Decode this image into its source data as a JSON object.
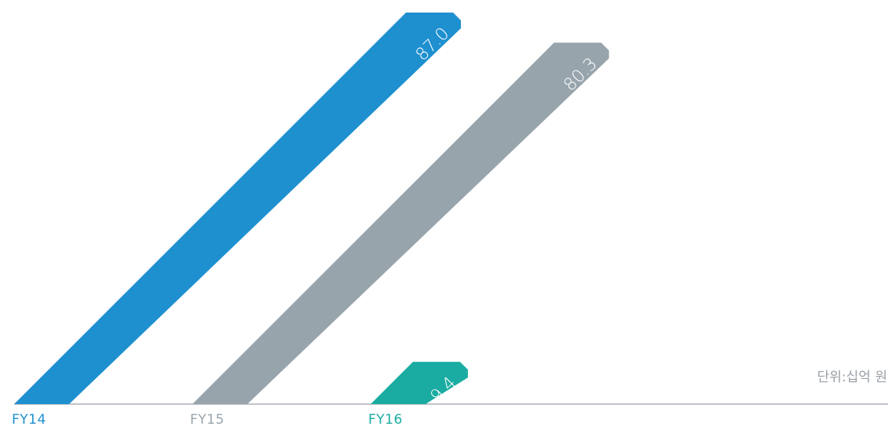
{
  "chart_data": {
    "type": "bar",
    "title": "",
    "xlabel": "",
    "ylabel": "",
    "unit": "단위:십억 원",
    "categories": [
      "FY14",
      "FY15",
      "FY16"
    ],
    "values": [
      87.0,
      80.3,
      9.4
    ],
    "value_labels": [
      "87.0",
      "80.3",
      "9.4"
    ],
    "ylim": [
      0,
      87.0
    ],
    "grid": false,
    "legend": "none",
    "bar_colors": [
      "#1e90d0",
      "#98a4ac",
      "#1aaca2"
    ],
    "tick_colors": [
      "#1e90d0",
      "#98a4ac",
      "#1aaca2"
    ],
    "baseline_color": "#9aa0a6",
    "unit_color": "#9aa0a6"
  }
}
